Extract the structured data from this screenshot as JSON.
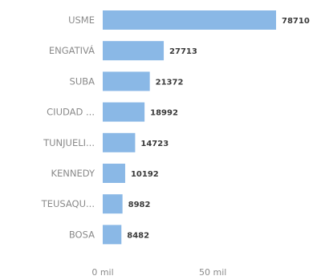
{
  "chart_data": {
    "type": "bar",
    "orientation": "horizontal",
    "categories": [
      "USME",
      "ENGATIVÁ",
      "SUBA",
      "CIUDAD ...",
      "TUNJUELI...",
      "KENNEDY",
      "TEUSAQU...",
      "BOSA"
    ],
    "values": [
      78710,
      27713,
      21372,
      18992,
      14723,
      10192,
      8982,
      8482
    ],
    "value_labels": [
      "78710",
      "27713",
      "21372",
      "18992",
      "14723",
      "10192",
      "8982",
      "8482"
    ],
    "xlim": [
      0,
      78710
    ],
    "x_ticks": [
      0,
      50000
    ],
    "x_tick_labels": [
      "0 mil",
      "50 mil"
    ],
    "bar_color": "#8ab8e6",
    "grid": false,
    "legend": "none"
  }
}
